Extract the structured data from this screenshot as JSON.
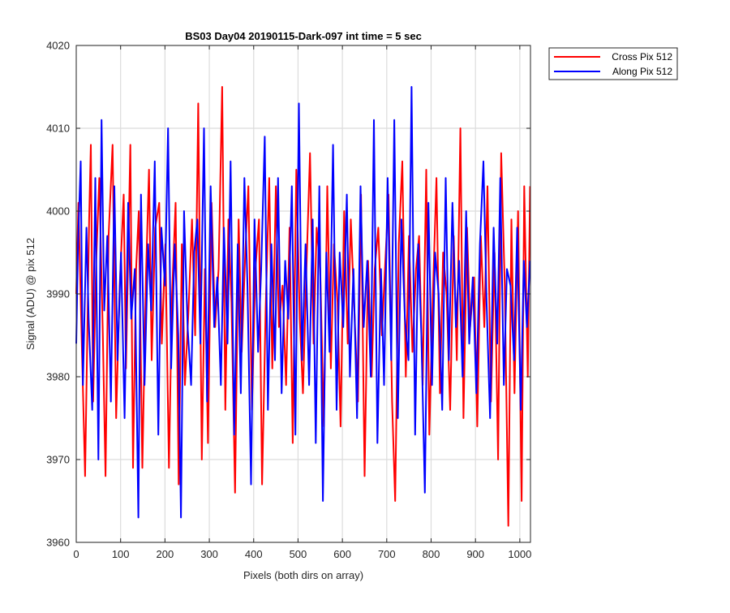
{
  "chart_data": {
    "type": "line",
    "title": "BS03 Day04 20190115-Dark-097 int time = 5 sec",
    "xlabel": "Pixels (both dirs on array)",
    "ylabel": "Signal (ADU) @ pix 512",
    "xlim": [
      0,
      1024
    ],
    "ylim": [
      3960,
      4020
    ],
    "x_ticks": [
      0,
      100,
      200,
      300,
      400,
      500,
      600,
      700,
      800,
      900,
      1000
    ],
    "y_ticks": [
      3960,
      3970,
      3980,
      3990,
      4000,
      4010,
      4020
    ],
    "grid": true,
    "legend_position": "outside-top-right",
    "series": [
      {
        "name": "Cross Pix 512",
        "color": "#ff0000",
        "x": [
          0,
          5,
          13,
          20,
          29,
          33,
          38,
          45,
          52,
          60,
          66,
          73,
          82,
          90,
          98,
          107,
          112,
          122,
          128,
          135,
          141,
          149,
          157,
          164,
          170,
          178,
          187,
          193,
          201,
          209,
          216,
          224,
          231,
          238,
          245,
          253,
          261,
          268,
          275,
          283,
          290,
          297,
          305,
          313,
          321,
          329,
          336,
          343,
          350,
          358,
          366,
          373,
          381,
          388,
          396,
          404,
          412,
          419,
          427,
          435,
          442,
          450,
          457,
          465,
          473,
          481,
          488,
          496,
          504,
          511,
          519,
          527,
          535,
          542,
          550,
          558,
          566,
          574,
          581,
          589,
          596,
          604,
          612,
          619,
          627,
          635,
          642,
          650,
          658,
          666,
          673,
          681,
          689,
          696,
          704,
          712,
          719,
          727,
          735,
          743,
          750,
          758,
          766,
          773,
          781,
          789,
          796,
          804,
          812,
          820,
          827,
          835,
          843,
          851,
          858,
          866,
          873,
          881,
          888,
          897,
          904,
          912,
          920,
          927,
          935,
          943,
          951,
          958,
          966,
          974,
          981,
          988,
          996,
          1004,
          1010,
          1018,
          1023
        ],
        "values": [
          3990,
          4001,
          3983,
          3968,
          3999,
          4008,
          3977,
          3994,
          4004,
          3985,
          3968,
          3997,
          4008,
          3975,
          3991,
          4002,
          3981,
          4008,
          3969,
          3993,
          4000,
          3969,
          3992,
          4005,
          3982,
          3998,
          4001,
          3984,
          3996,
          3969,
          3990,
          4001,
          3967,
          3996,
          3979,
          3988,
          3999,
          3985,
          4013,
          3970,
          3993,
          3972,
          4001,
          3986,
          3993,
          4015,
          3976,
          3999,
          3989,
          3966,
          3999,
          3983,
          3995,
          4003,
          3976,
          3993,
          3999,
          3967,
          3988,
          4004,
          3981,
          4003,
          3986,
          3991,
          3979,
          3998,
          3972,
          4005,
          3987,
          3978,
          3993,
          4007,
          3984,
          3998,
          3993,
          3974,
          4003,
          3981,
          3996,
          3989,
          3974,
          4000,
          3984,
          3999,
          3988,
          3977,
          4002,
          3968,
          3994,
          3980,
          3993,
          3998,
          3985,
          3993,
          4002,
          3977,
          3965,
          3996,
          4006,
          3980,
          3997,
          3983,
          3993,
          3997,
          3979,
          4005,
          3973,
          3990,
          4004,
          3978,
          3995,
          3990,
          3976,
          3997,
          3982,
          4010,
          3975,
          3998,
          3986,
          3992,
          3974,
          3997,
          3986,
          4003,
          3977,
          3995,
          3970,
          4007,
          3991,
          3962,
          3999,
          3978,
          4000,
          3965,
          4003,
          3980,
          4003
        ]
      },
      {
        "name": "Along Pix 512",
        "color": "#0000ff",
        "x": [
          0,
          4,
          10,
          15,
          23,
          28,
          36,
          43,
          50,
          57,
          63,
          70,
          78,
          86,
          93,
          101,
          109,
          117,
          124,
          132,
          140,
          146,
          154,
          162,
          169,
          177,
          185,
          192,
          200,
          207,
          214,
          222,
          230,
          236,
          243,
          251,
          259,
          266,
          273,
          280,
          288,
          295,
          303,
          311,
          318,
          326,
          333,
          341,
          348,
          356,
          364,
          371,
          379,
          386,
          394,
          402,
          410,
          417,
          425,
          432,
          440,
          448,
          455,
          463,
          471,
          478,
          486,
          494,
          502,
          509,
          517,
          525,
          533,
          540,
          548,
          556,
          564,
          571,
          579,
          587,
          594,
          602,
          610,
          617,
          625,
          633,
          641,
          648,
          656,
          664,
          671,
          679,
          687,
          694,
          702,
          710,
          717,
          725,
          733,
          741,
          749,
          756,
          764,
          771,
          778,
          786,
          794,
          802,
          809,
          817,
          825,
          833,
          840,
          848,
          856,
          863,
          871,
          879,
          886,
          894,
          902,
          910,
          918,
          925,
          933,
          941,
          949,
          956,
          964,
          971,
          979,
          987,
          994,
          1002,
          1009,
          1016,
          1023
        ],
        "values": [
          3984,
          3996,
          4006,
          3979,
          3998,
          3987,
          3976,
          4004,
          3970,
          4011,
          3988,
          3997,
          3977,
          4003,
          3982,
          3995,
          3975,
          4001,
          3987,
          3993,
          3963,
          4002,
          3979,
          3996,
          3988,
          4006,
          3973,
          3998,
          3991,
          4010,
          3981,
          3996,
          3985,
          3963,
          4000,
          3986,
          3979,
          3995,
          3999,
          3984,
          4010,
          3977,
          4003,
          3986,
          3992,
          3979,
          3998,
          3984,
          4006,
          3973,
          3996,
          3978,
          4004,
          3991,
          3967,
          3999,
          3983,
          3993,
          4009,
          3976,
          3996,
          3982,
          4004,
          3978,
          3994,
          3987,
          4003,
          3973,
          4013,
          3982,
          3996,
          3979,
          3999,
          3972,
          4003,
          3965,
          3995,
          3983,
          4008,
          3976,
          3995,
          3986,
          4002,
          3980,
          3993,
          3975,
          4003,
          3986,
          3994,
          3980,
          4011,
          3972,
          3993,
          3979,
          4004,
          3982,
          4011,
          3975,
          3999,
          3987,
          3982,
          4015,
          3973,
          3996,
          3985,
          3966,
          4001,
          3979,
          3995,
          3990,
          3976,
          4004,
          3982,
          4001,
          3986,
          3994,
          3980,
          4000,
          3984,
          3992,
          3978,
          3996,
          4006,
          3989,
          3975,
          3998,
          3984,
          4004,
          3979,
          3993,
          3991,
          3982,
          3998,
          3976,
          3994,
          3986,
          3994
        ]
      }
    ]
  }
}
